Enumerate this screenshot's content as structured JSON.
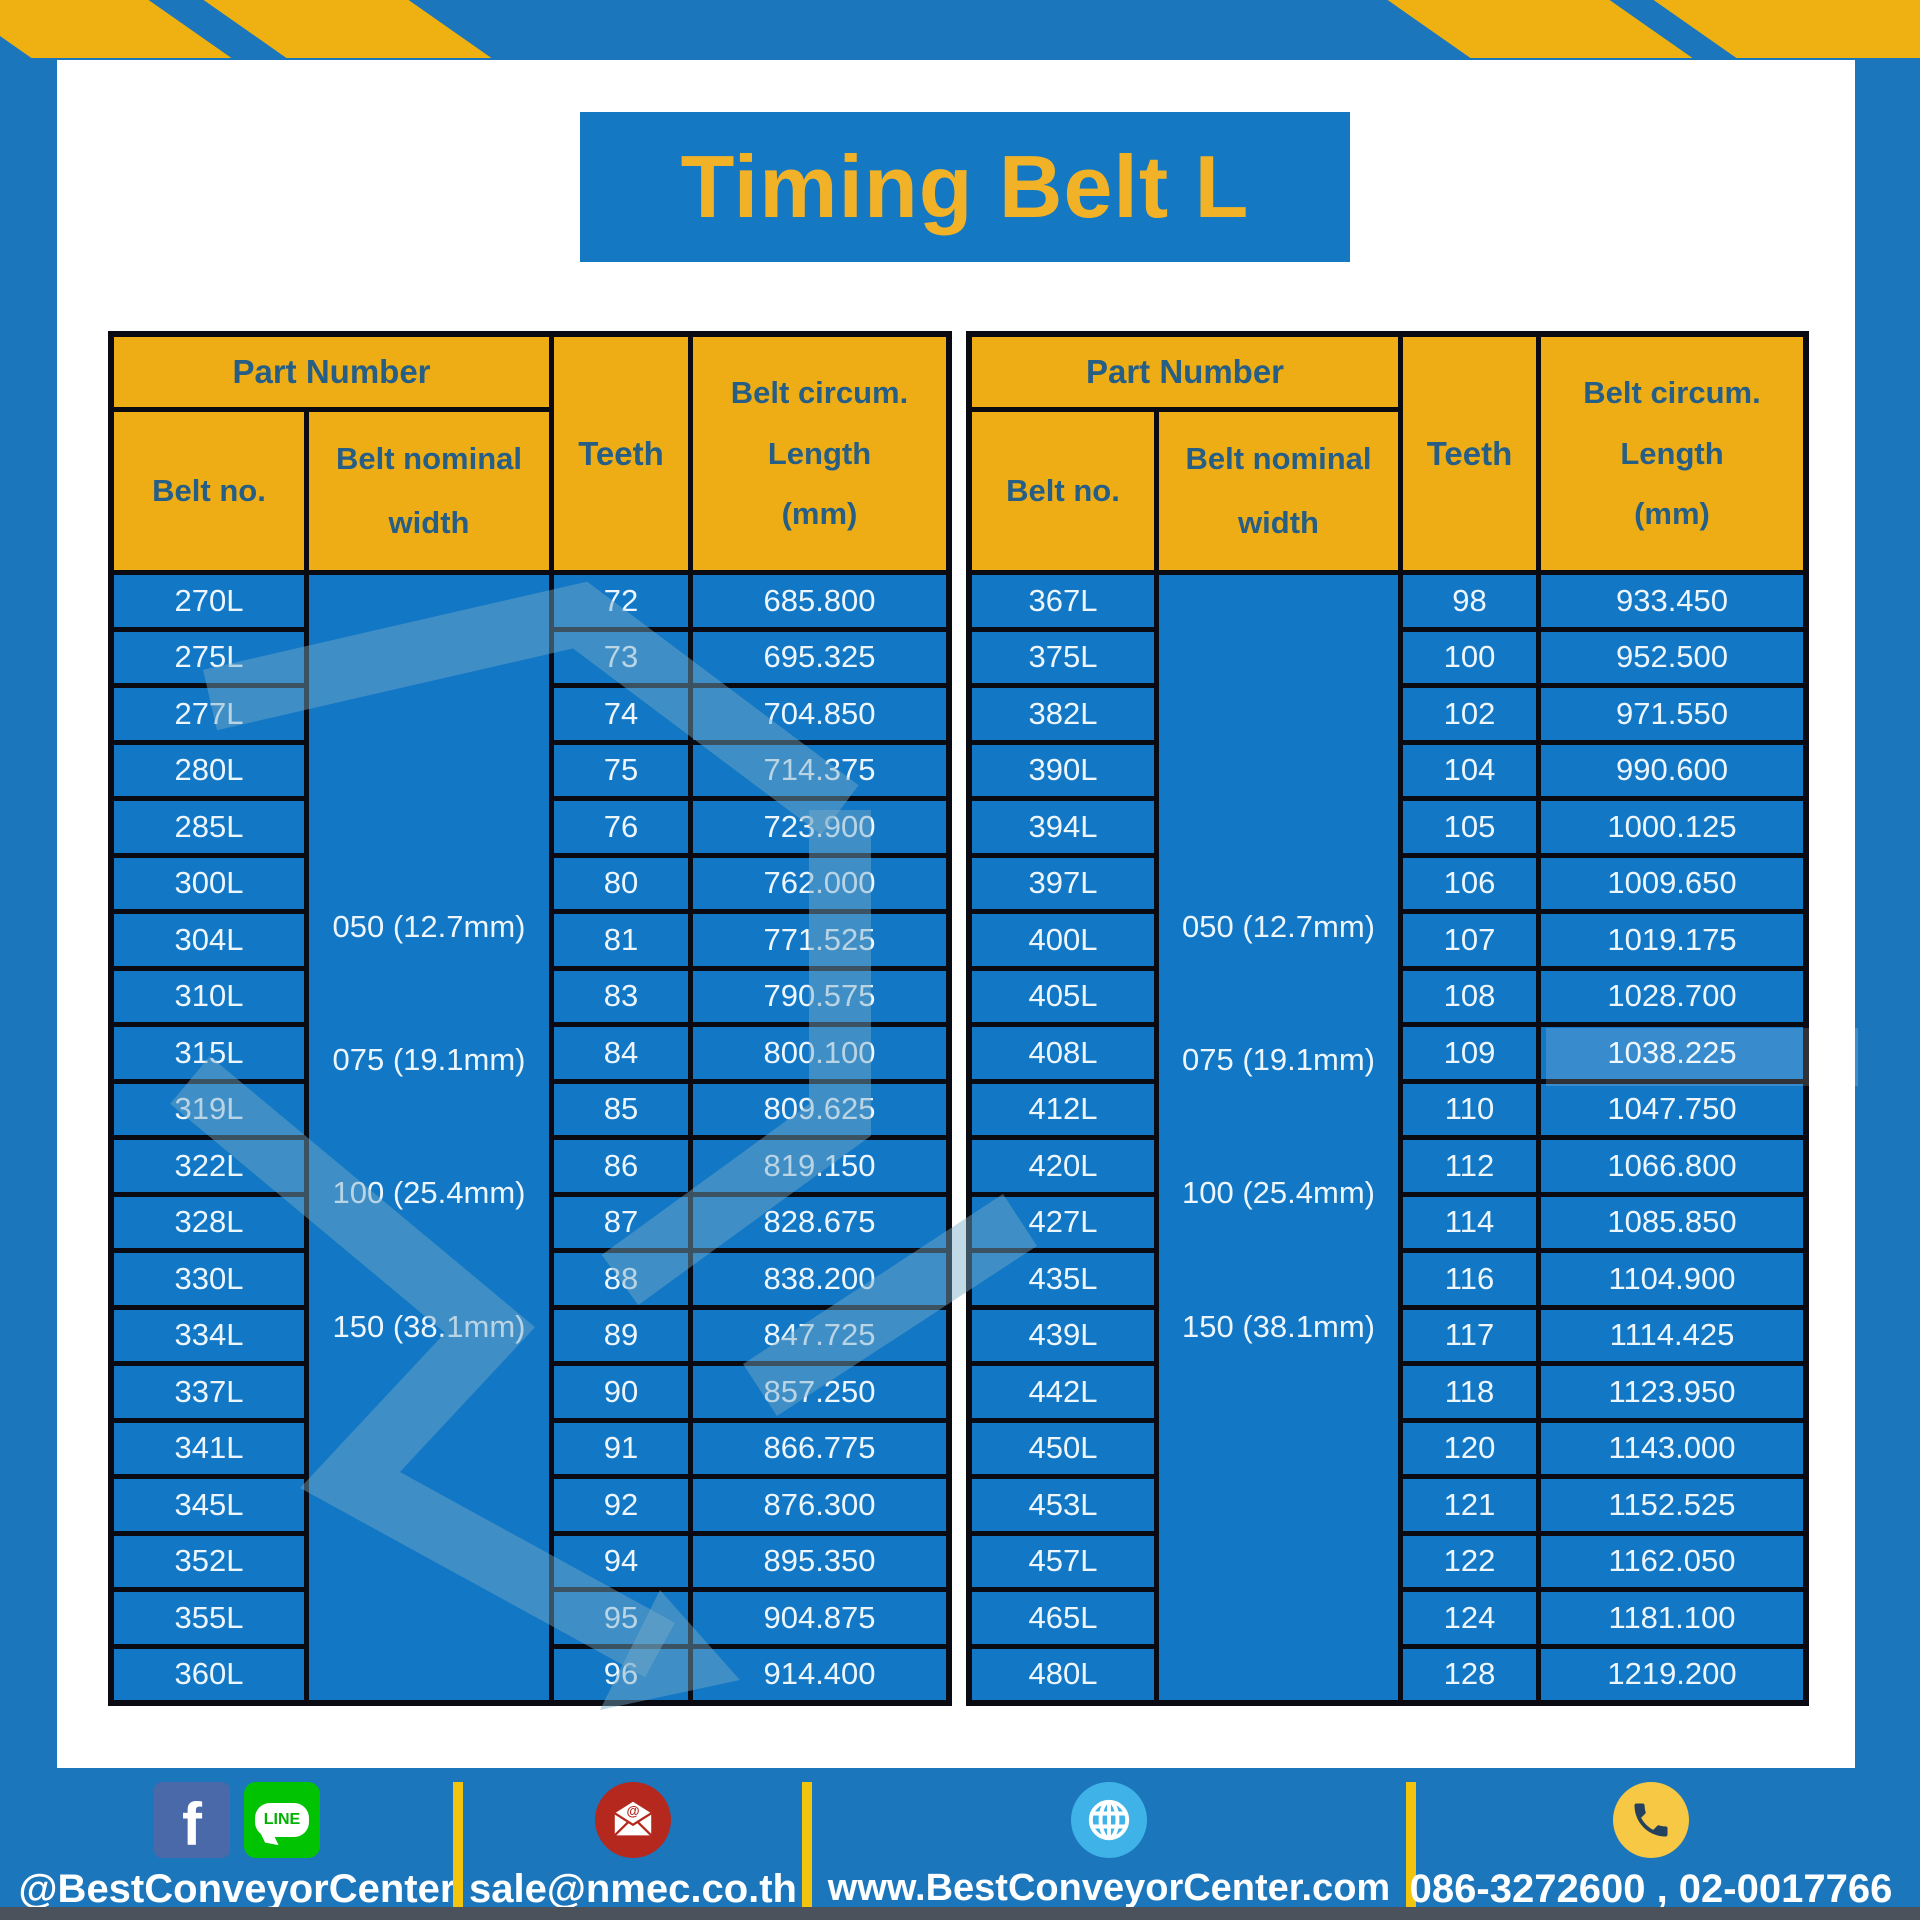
{
  "title": "Timing Belt L",
  "header": {
    "part_number": "Part Number",
    "belt_no": "Belt no.",
    "belt_nominal_width_line1": "Belt nominal",
    "belt_nominal_width_line2": "width",
    "teeth": "Teeth",
    "belt_circum_line1": "Belt circum.",
    "belt_circum_line2": "Length",
    "belt_circum_line3": "(mm)"
  },
  "tables": [
    {
      "name": "left",
      "widths": [
        "050 (12.7mm)",
        "075 (19.1mm)",
        "100 (25.4mm)",
        "150 (38.1mm)"
      ],
      "rows": [
        [
          "270L",
          "72",
          "685.800"
        ],
        [
          "275L",
          "73",
          "695.325"
        ],
        [
          "277L",
          "74",
          "704.850"
        ],
        [
          "280L",
          "75",
          "714.375"
        ],
        [
          "285L",
          "76",
          "723.900"
        ],
        [
          "300L",
          "80",
          "762.000"
        ],
        [
          "304L",
          "81",
          "771.525"
        ],
        [
          "310L",
          "83",
          "790.575"
        ],
        [
          "315L",
          "84",
          "800.100"
        ],
        [
          "319L",
          "85",
          "809.625"
        ],
        [
          "322L",
          "86",
          "819.150"
        ],
        [
          "328L",
          "87",
          "828.675"
        ],
        [
          "330L",
          "88",
          "838.200"
        ],
        [
          "334L",
          "89",
          "847.725"
        ],
        [
          "337L",
          "90",
          "857.250"
        ],
        [
          "341L",
          "91",
          "866.775"
        ],
        [
          "345L",
          "92",
          "876.300"
        ],
        [
          "352L",
          "94",
          "895.350"
        ],
        [
          "355L",
          "95",
          "904.875"
        ],
        [
          "360L",
          "96",
          "914.400"
        ]
      ]
    },
    {
      "name": "right",
      "widths": [
        "050 (12.7mm)",
        "075 (19.1mm)",
        "100 (25.4mm)",
        "150 (38.1mm)"
      ],
      "rows": [
        [
          "367L",
          "98",
          "933.450"
        ],
        [
          "375L",
          "100",
          "952.500"
        ],
        [
          "382L",
          "102",
          "971.550"
        ],
        [
          "390L",
          "104",
          "990.600"
        ],
        [
          "394L",
          "105",
          "1000.125"
        ],
        [
          "397L",
          "106",
          "1009.650"
        ],
        [
          "400L",
          "107",
          "1019.175"
        ],
        [
          "405L",
          "108",
          "1028.700"
        ],
        [
          "408L",
          "109",
          "1038.225"
        ],
        [
          "412L",
          "110",
          "1047.750"
        ],
        [
          "420L",
          "112",
          "1066.800"
        ],
        [
          "427L",
          "114",
          "1085.850"
        ],
        [
          "435L",
          "116",
          "1104.900"
        ],
        [
          "439L",
          "117",
          "1114.425"
        ],
        [
          "442L",
          "118",
          "1123.950"
        ],
        [
          "450L",
          "120",
          "1143.000"
        ],
        [
          "453L",
          "121",
          "1152.525"
        ],
        [
          "457L",
          "122",
          "1162.050"
        ],
        [
          "465L",
          "124",
          "1181.100"
        ],
        [
          "480L",
          "128",
          "1219.200"
        ]
      ]
    }
  ],
  "footer": {
    "social_label": "@BestConveyorCenter",
    "email": "sale@nmec.co.th",
    "website": "www.BestConveyorCenter.com",
    "phones": "086-3272600 , 02-0017766",
    "line_text": "LINE",
    "fb_letter": "f",
    "mail_at": "@"
  },
  "colors": {
    "frame_blue": "#1B76BC",
    "cell_blue": "#1277C5",
    "header_yellow": "#EFAD15",
    "hazard_yellow": "#EFB011",
    "title_yellow": "#F2B227",
    "header_text_blue": "#265E86",
    "divider_yellow": "#F2C40D",
    "facebook_blue": "#4A69A8",
    "line_green": "#02C301",
    "mail_red": "#B5281E",
    "globe_blue": "#3FB3E8",
    "phone_yellow": "#F7C844"
  }
}
